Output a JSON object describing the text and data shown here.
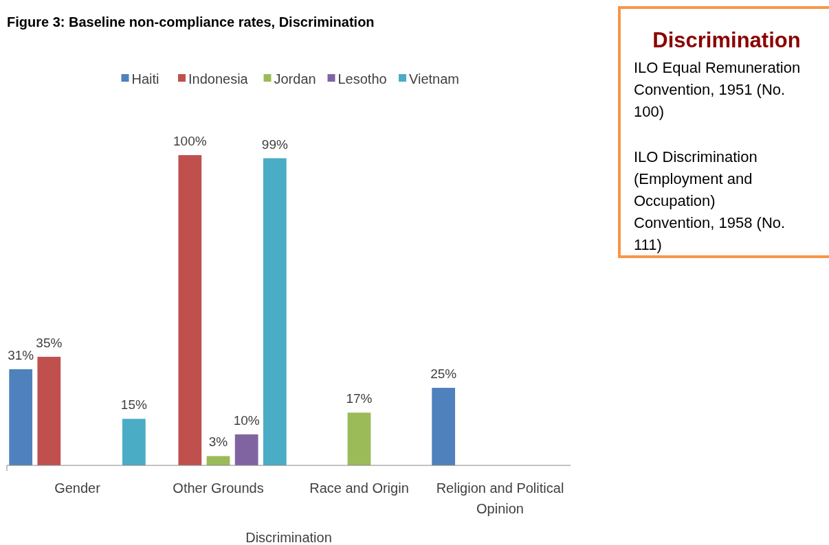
{
  "chart_data": {
    "type": "bar",
    "title": "Figure 3: Baseline non-compliance rates, Discrimination",
    "xlabel": "Discrimination",
    "categories": [
      "Gender",
      "Other Grounds",
      "Race and Origin",
      "Religion and Political Opinion"
    ],
    "legend": "top",
    "series": [
      {
        "name": "Haiti",
        "color": "#4f81bd",
        "values": [
          31,
          null,
          null,
          25
        ],
        "value_labels": [
          "31%",
          null,
          null,
          "25%"
        ]
      },
      {
        "name": "Indonesia",
        "color": "#c0504d",
        "values": [
          35,
          100,
          null,
          null
        ],
        "value_labels": [
          "35%",
          "100%",
          null,
          null
        ]
      },
      {
        "name": "Jordan",
        "color": "#9bbb59",
        "values": [
          null,
          3,
          17,
          null
        ],
        "value_labels": [
          null,
          "3%",
          "17%",
          null
        ]
      },
      {
        "name": "Lesotho",
        "color": "#8064a2",
        "values": [
          null,
          10,
          null,
          null
        ],
        "value_labels": [
          null,
          "10%",
          null,
          null
        ]
      },
      {
        "name": "Vietnam",
        "color": "#4bacc6",
        "values": [
          15,
          99,
          null,
          null
        ],
        "value_labels": [
          "15%",
          "99%",
          null,
          null
        ]
      }
    ],
    "annotations": [
      "Discrimination",
      "ILO Equal Remuneration Convention, 1951 (No. 100)",
      "ILO Discrimination (Employment and Occupation) Convention, 1958 (No. 111)"
    ]
  }
}
